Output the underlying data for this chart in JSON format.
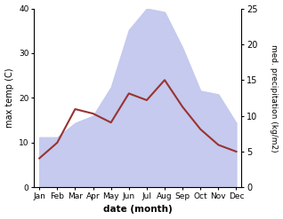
{
  "months": [
    "Jan",
    "Feb",
    "Mar",
    "Apr",
    "May",
    "Jun",
    "Jul",
    "Aug",
    "Sep",
    "Oct",
    "Nov",
    "Dec"
  ],
  "max_temp": [
    6.5,
    10.0,
    17.5,
    16.5,
    14.5,
    21.0,
    19.5,
    24.0,
    18.0,
    13.0,
    9.5,
    8.0
  ],
  "precipitation": [
    7.0,
    7.0,
    9.0,
    10.0,
    14.0,
    22.0,
    25.0,
    24.5,
    19.5,
    13.5,
    13.0,
    9.0
  ],
  "temp_color": "#993333",
  "precip_fill_color": "#c5caee",
  "temp_ylim": [
    0,
    40
  ],
  "precip_ylim": [
    0,
    25
  ],
  "temp_yticks": [
    0,
    10,
    20,
    30,
    40
  ],
  "precip_yticks": [
    0,
    5,
    10,
    15,
    20,
    25
  ],
  "xlabel": "date (month)",
  "ylabel_left": "max temp (C)",
  "ylabel_right": "med. precipitation (kg/m2)",
  "bg_color": "#ffffff",
  "fig_width": 3.18,
  "fig_height": 2.47,
  "dpi": 100
}
